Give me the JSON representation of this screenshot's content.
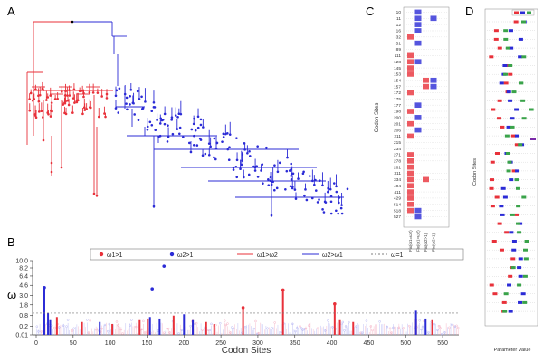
{
  "panels": {
    "a": "A",
    "b": "B",
    "c": "C",
    "d": "D"
  },
  "colors": {
    "red": "#e8313a",
    "blue": "#2b2bd6",
    "pink": "#f2a0b8",
    "lightblue": "#a6a6f0",
    "green": "#3aa34a",
    "purple": "#7a2aa8",
    "grid": "#999999"
  },
  "chart_data": [
    {
      "panel": "A",
      "type": "tree",
      "clades": [
        {
          "name": "red clade",
          "color": "red"
        },
        {
          "name": "blue clade",
          "color": "blue"
        }
      ]
    },
    {
      "panel": "B",
      "type": "bar",
      "xlabel": "Codon Sites",
      "ylabel": "ω",
      "xlim": [
        0,
        572
      ],
      "yscale": "sqrt",
      "ylim": [
        0.01,
        10.0
      ],
      "yticks": [
        "10.0",
        "8.2",
        "6.4",
        "4.6",
        "3.0",
        "1.8",
        "0.8",
        "0.2",
        "0.01"
      ],
      "xticks": [
        "0",
        "50",
        "100",
        "150",
        "200",
        "250",
        "300",
        "350",
        "400",
        "450",
        "500",
        "550"
      ],
      "legend": {
        "position": "top",
        "entries": [
          "ω1>1",
          "ω2>1",
          "ω1>ω2",
          "ω2>ω1",
          "ω=1"
        ]
      },
      "reference_line": 1.0,
      "red_bars": [
        {
          "x": 28,
          "y": 0.7
        },
        {
          "x": 62,
          "y": 0.4
        },
        {
          "x": 103,
          "y": 0.3
        },
        {
          "x": 140,
          "y": 0.5
        },
        {
          "x": 151,
          "y": 0.6
        },
        {
          "x": 186,
          "y": 0.8
        },
        {
          "x": 212,
          "y": 0.5
        },
        {
          "x": 230,
          "y": 0.4
        },
        {
          "x": 241,
          "y": 0.3
        },
        {
          "x": 280,
          "y": 1.6
        },
        {
          "x": 334,
          "y": 4.0
        },
        {
          "x": 404,
          "y": 2.0
        },
        {
          "x": 411,
          "y": 0.5
        },
        {
          "x": 429,
          "y": 0.4
        },
        {
          "x": 514,
          "y": 0.6
        },
        {
          "x": 536,
          "y": 0.5
        }
      ],
      "blue_bars": [
        {
          "x": 11,
          "y": 4.2
        },
        {
          "x": 16,
          "y": 1.0
        },
        {
          "x": 19,
          "y": 0.5
        },
        {
          "x": 86,
          "y": 0.4
        },
        {
          "x": 154,
          "y": 0.7
        },
        {
          "x": 167,
          "y": 0.6
        },
        {
          "x": 200,
          "y": 0.9
        },
        {
          "x": 212,
          "y": 0.5
        },
        {
          "x": 514,
          "y": 1.2
        },
        {
          "x": 527,
          "y": 0.6
        }
      ],
      "red_points": [
        {
          "x": 334,
          "y": 3.8
        },
        {
          "x": 280,
          "y": 1.5
        },
        {
          "x": 404,
          "y": 1.9
        }
      ],
      "blue_points": [
        {
          "x": 173,
          "y": 8.6
        },
        {
          "x": 157,
          "y": 4.0
        },
        {
          "x": 11,
          "y": 4.2
        }
      ]
    },
    {
      "panel": "C",
      "type": "heatmap",
      "ylabel": "Codon Sites",
      "rows": [
        "10",
        "11",
        "12",
        "16",
        "32",
        "51",
        "89",
        "111",
        "128",
        "145",
        "153",
        "154",
        "157",
        "172",
        "175",
        "177",
        "198",
        "200",
        "201",
        "206",
        "211",
        "215",
        "234",
        "271",
        "278",
        "281",
        "311",
        "334",
        "404",
        "411",
        "429",
        "514",
        "518",
        "527"
      ],
      "columns": [
        "Fix(ω1=ω2)",
        "Fix(ω1>ω2)",
        "Fix(ω2>1)",
        "Fix(ω2>1)"
      ]
    },
    {
      "panel": "D",
      "type": "box",
      "xlabel": "Parameter Value",
      "ylabel": "Codon Sites"
    }
  ]
}
